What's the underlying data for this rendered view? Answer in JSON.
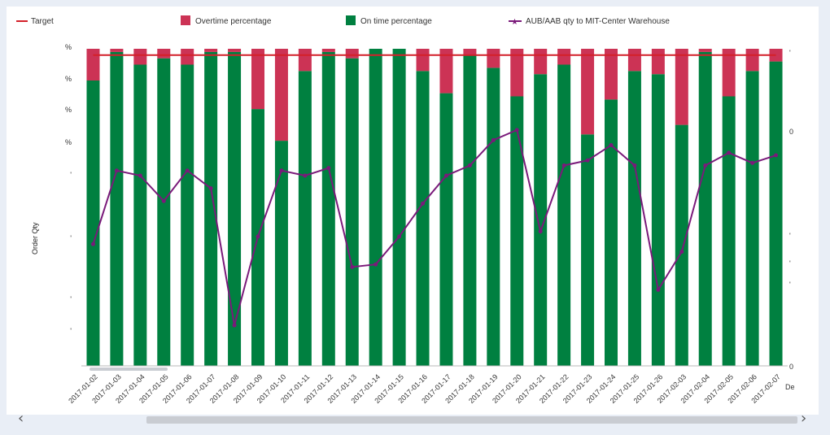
{
  "legend": {
    "target": "Target",
    "overtime": "Overtime percentage",
    "ontime": "On time percentage",
    "qty": "AUB/AAB qty to MIT-Center Warehouse"
  },
  "colors": {
    "target": "#d3202a",
    "overtime": "#cc3355",
    "ontime": "#008040",
    "qty": "#7a1a7a"
  },
  "axis": {
    "left_title": "Order Qty",
    "right_title_fragment": "De",
    "left_tick_fragments": [
      "%",
      "%",
      "%",
      "%",
      "'",
      "'",
      "'",
      "'"
    ],
    "right_tick_labels": [
      "'",
      "0",
      "'",
      "'",
      "'",
      "0"
    ]
  },
  "chart_data": {
    "type": "bar",
    "stacked": true,
    "categories": [
      "2017-01-02",
      "2017-01-03",
      "2017-01-04",
      "2017-01-05",
      "2017-01-06",
      "2017-01-07",
      "2017-01-08",
      "2017-01-09",
      "2017-01-10",
      "2017-01-11",
      "2017-01-12",
      "2017-01-13",
      "2017-01-14",
      "2017-01-15",
      "2017-01-16",
      "2017-01-17",
      "2017-01-18",
      "2017-01-19",
      "2017-01-20",
      "2017-01-21",
      "2017-01-22",
      "2017-01-23",
      "2017-01-24",
      "2017-01-25",
      "2017-01-26",
      "2017-02-03",
      "2017-02-04",
      "2017-02-05",
      "2017-02-06",
      "2017-02-07"
    ],
    "series": [
      {
        "name": "On time percentage",
        "values": [
          90,
          99,
          95,
          97,
          95,
          99,
          99,
          81,
          71,
          93,
          99,
          97,
          100,
          100,
          93,
          86,
          98,
          94,
          85,
          92,
          95,
          73,
          84,
          93,
          92,
          76,
          99,
          85,
          93,
          96
        ]
      },
      {
        "name": "Overtime percentage",
        "values": [
          10,
          1,
          5,
          3,
          5,
          1,
          1,
          19,
          29,
          7,
          1,
          3,
          0,
          0,
          7,
          14,
          2,
          6,
          15,
          8,
          5,
          27,
          16,
          7,
          8,
          24,
          1,
          15,
          7,
          4
        ]
      },
      {
        "name": "AUB/AAB qty to MIT-Center Warehouse",
        "type": "line",
        "values": [
          48,
          77,
          75,
          65,
          77,
          70,
          16,
          51,
          77,
          75,
          78,
          39,
          40,
          51,
          64,
          75,
          79,
          89,
          93,
          53,
          79,
          81,
          87,
          79,
          30,
          45,
          79,
          84,
          80,
          83
        ]
      },
      {
        "name": "Target",
        "type": "line",
        "values": [
          98,
          98,
          98,
          98,
          98,
          98,
          98,
          98,
          98,
          98,
          98,
          98,
          98,
          98,
          98,
          98,
          98,
          98,
          98,
          98,
          98,
          98,
          98,
          98,
          98,
          98,
          98,
          98,
          98,
          98
        ]
      }
    ],
    "ylim": [
      0,
      100
    ],
    "y2lim": [
      0,
      125
    ],
    "ylabel": "Order Qty",
    "legend_position": "top"
  }
}
